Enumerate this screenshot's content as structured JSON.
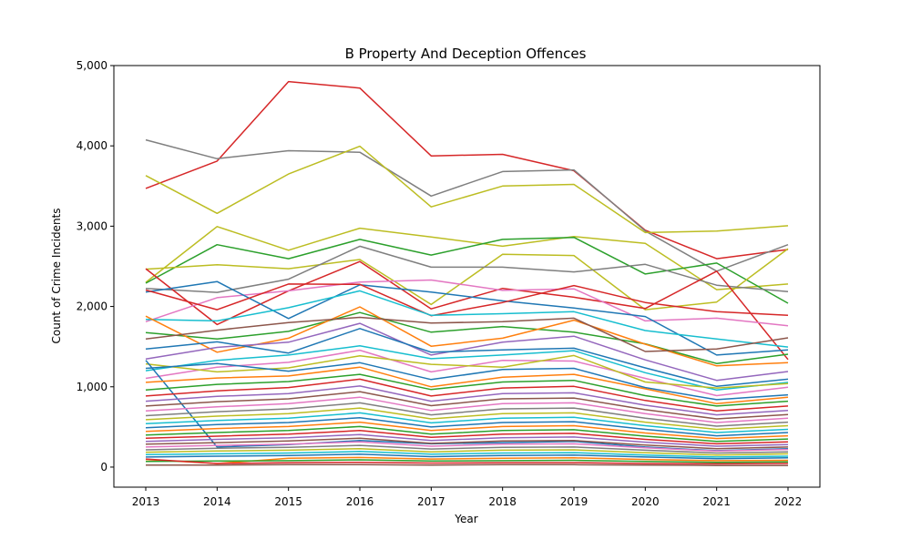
{
  "chart_data": {
    "type": "line",
    "title": "B Property And Deception Offences",
    "xlabel": "Year",
    "ylabel": "Count of Crime Incidents",
    "x": [
      2013,
      2014,
      2015,
      2016,
      2017,
      2018,
      2019,
      2020,
      2021,
      2022
    ],
    "x_tick_labels": [
      "2013",
      "2014",
      "2015",
      "2016",
      "2017",
      "2018",
      "2019",
      "2020",
      "2021",
      "2022"
    ],
    "ylim": [
      -250,
      5000
    ],
    "y_ticks": [
      0,
      1000,
      2000,
      3000,
      4000,
      5000
    ],
    "y_tick_labels": [
      "0",
      "1,000",
      "2,000",
      "3,000",
      "4,000",
      "5,000"
    ],
    "grid": false,
    "legend": "none",
    "palette": [
      "#1f77b4",
      "#ff7f0e",
      "#2ca02c",
      "#d62728",
      "#9467bd",
      "#8c564b",
      "#e377c2",
      "#7f7f7f",
      "#bcbd22",
      "#17becf"
    ],
    "series": [
      {
        "color": "#d62728",
        "values": [
          3470,
          3810,
          4800,
          4720,
          3875,
          3895,
          3690,
          2950,
          2595,
          2710
        ]
      },
      {
        "color": "#7f7f7f",
        "values": [
          4075,
          3840,
          3940,
          3920,
          3375,
          3680,
          3700,
          2940,
          2440,
          2770
        ]
      },
      {
        "color": "#bcbd22",
        "values": [
          3630,
          3160,
          3650,
          3995,
          3240,
          3500,
          3520,
          2920,
          2940,
          3005
        ]
      },
      {
        "color": "#bcbd22",
        "values": [
          2300,
          2995,
          2700,
          2975,
          2865,
          2750,
          2870,
          2785,
          2210,
          2280
        ]
      },
      {
        "color": "#2ca02c",
        "values": [
          2290,
          2770,
          2595,
          2835,
          2640,
          2835,
          2860,
          2405,
          2540,
          2040
        ]
      },
      {
        "color": "#bcbd22",
        "values": [
          2465,
          2520,
          2470,
          2585,
          2025,
          2650,
          2635,
          1960,
          2055,
          2720
        ]
      },
      {
        "color": "#7f7f7f",
        "values": [
          2225,
          2175,
          2340,
          2750,
          2490,
          2490,
          2430,
          2525,
          2265,
          2185
        ]
      },
      {
        "color": "#d62728",
        "values": [
          2470,
          1775,
          2195,
          2560,
          1970,
          2225,
          2115,
          1975,
          2440,
          1340
        ]
      },
      {
        "color": "#e377c2",
        "values": [
          1810,
          2110,
          2195,
          2305,
          2330,
          2200,
          2220,
          1820,
          1855,
          1760
        ]
      },
      {
        "color": "#1f77b4",
        "values": [
          2180,
          2310,
          1850,
          2270,
          2180,
          2070,
          1980,
          1875,
          1395,
          1460
        ]
      },
      {
        "color": "#d62728",
        "values": [
          2205,
          1960,
          2280,
          2275,
          1885,
          2050,
          2260,
          2050,
          1935,
          1890
        ]
      },
      {
        "color": "#17becf",
        "values": [
          1840,
          1820,
          1985,
          2195,
          1890,
          1910,
          1935,
          1700,
          1595,
          1495
        ]
      },
      {
        "color": "#2ca02c",
        "values": [
          1675,
          1595,
          1690,
          1925,
          1680,
          1750,
          1680,
          1535,
          1290,
          1405
        ]
      },
      {
        "color": "#ff7f0e",
        "values": [
          1880,
          1430,
          1605,
          1995,
          1505,
          1605,
          1830,
          1530,
          1260,
          1300
        ]
      },
      {
        "color": "#8c564b",
        "values": [
          1595,
          1705,
          1800,
          1865,
          1795,
          1810,
          1855,
          1440,
          1470,
          1610
        ]
      },
      {
        "color": "#9467bd",
        "values": [
          1345,
          1490,
          1555,
          1790,
          1395,
          1555,
          1630,
          1335,
          1080,
          1190
        ]
      },
      {
        "color": "#1f77b4",
        "values": [
          1470,
          1560,
          1420,
          1725,
          1430,
          1460,
          1480,
          1235,
          1005,
          1095
        ]
      },
      {
        "color": "#17becf",
        "values": [
          1200,
          1330,
          1395,
          1510,
          1350,
          1395,
          1450,
          1175,
          960,
          1055
        ]
      },
      {
        "color": "#e377c2",
        "values": [
          1105,
          1245,
          1305,
          1455,
          1185,
          1330,
          1320,
          1105,
          890,
          995
        ]
      },
      {
        "color": "#bcbd22",
        "values": [
          1285,
          1185,
          1235,
          1385,
          1280,
          1245,
          1390,
          1060,
          985,
          1040
        ]
      },
      {
        "color": "#1f77b4",
        "values": [
          1330,
          250,
          280,
          330,
          290,
          305,
          320,
          250,
          205,
          230
        ]
      },
      {
        "color": "#1f77b4",
        "values": [
          1230,
          1290,
          1195,
          1300,
          1090,
          1215,
          1230,
          990,
          840,
          900
        ]
      },
      {
        "color": "#ff7f0e",
        "values": [
          1055,
          1110,
          1135,
          1245,
          1000,
          1120,
          1155,
          975,
          790,
          870
        ]
      },
      {
        "color": "#2ca02c",
        "values": [
          960,
          1030,
          1065,
          1155,
          965,
          1060,
          1080,
          890,
          760,
          820
        ]
      },
      {
        "color": "#d62728",
        "values": [
          885,
          950,
          990,
          1095,
          885,
          985,
          1005,
          830,
          700,
          760
        ]
      },
      {
        "color": "#9467bd",
        "values": [
          820,
          880,
          915,
          1010,
          820,
          915,
          925,
          770,
          650,
          705
        ]
      },
      {
        "color": "#8c564b",
        "values": [
          760,
          815,
          850,
          940,
          765,
          850,
          860,
          715,
          600,
          655
        ]
      },
      {
        "color": "#e377c2",
        "values": [
          700,
          750,
          790,
          870,
          705,
          790,
          800,
          665,
          555,
          610
        ]
      },
      {
        "color": "#7f7f7f",
        "values": [
          640,
          690,
          725,
          800,
          650,
          725,
          735,
          610,
          510,
          560
        ]
      },
      {
        "color": "#bcbd22",
        "values": [
          590,
          635,
          665,
          735,
          600,
          665,
          675,
          560,
          470,
          515
        ]
      },
      {
        "color": "#17becf",
        "values": [
          540,
          580,
          610,
          675,
          550,
          610,
          620,
          515,
          430,
          470
        ]
      },
      {
        "color": "#1f77b4",
        "values": [
          490,
          530,
          555,
          615,
          500,
          555,
          565,
          470,
          390,
          430
        ]
      },
      {
        "color": "#ff7f0e",
        "values": [
          445,
          480,
          505,
          560,
          455,
          505,
          515,
          425,
          355,
          390
        ]
      },
      {
        "color": "#2ca02c",
        "values": [
          400,
          430,
          455,
          505,
          410,
          455,
          465,
          385,
          320,
          350
        ]
      },
      {
        "color": "#d62728",
        "values": [
          360,
          385,
          410,
          455,
          370,
          410,
          420,
          345,
          290,
          315
        ]
      },
      {
        "color": "#9467bd",
        "values": [
          320,
          345,
          365,
          405,
          330,
          365,
          375,
          310,
          260,
          280
        ]
      },
      {
        "color": "#8c564b",
        "values": [
          285,
          305,
          325,
          360,
          295,
          325,
          330,
          275,
          230,
          250
        ]
      },
      {
        "color": "#e377c2",
        "values": [
          250,
          270,
          285,
          315,
          260,
          285,
          290,
          240,
          200,
          220
        ]
      },
      {
        "color": "#7f7f7f",
        "values": [
          215,
          235,
          245,
          270,
          225,
          245,
          250,
          210,
          175,
          190
        ]
      },
      {
        "color": "#bcbd22",
        "values": [
          185,
          200,
          210,
          230,
          190,
          210,
          215,
          180,
          150,
          165
        ]
      },
      {
        "color": "#17becf",
        "values": [
          155,
          165,
          175,
          195,
          160,
          175,
          180,
          150,
          125,
          135
        ]
      },
      {
        "color": "#1f77b4",
        "values": [
          125,
          135,
          145,
          160,
          130,
          145,
          150,
          125,
          105,
          115
        ]
      },
      {
        "color": "#ff7f0e",
        "values": [
          95,
          45,
          110,
          120,
          100,
          110,
          115,
          95,
          80,
          85
        ]
      },
      {
        "color": "#2ca02c",
        "values": [
          70,
          75,
          80,
          90,
          75,
          80,
          85,
          70,
          60,
          65
        ]
      },
      {
        "color": "#d62728",
        "values": [
          100,
          45,
          55,
          60,
          50,
          55,
          55,
          45,
          40,
          45
        ]
      },
      {
        "color": "#8c564b",
        "values": [
          25,
          25,
          30,
          30,
          25,
          30,
          30,
          25,
          20,
          20
        ]
      }
    ]
  }
}
